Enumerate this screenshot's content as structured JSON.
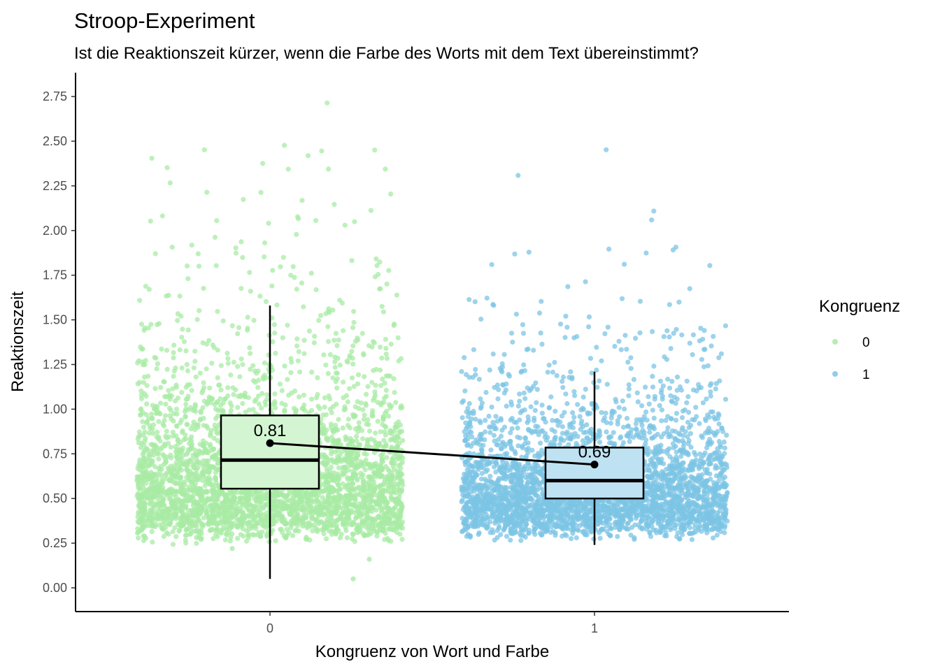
{
  "chart_data": {
    "type": "box",
    "title": "Stroop-Experiment",
    "subtitle": "Ist die Reaktionszeit kürzer, wenn die Farbe des Worts mit dem Text übereinstimmt?",
    "xlabel": "Kongruenz von Wort und Farbe",
    "ylabel": "Reaktionszeit",
    "categories": [
      "0",
      "1"
    ],
    "ylim": [
      -0.13,
      2.9
    ],
    "yticks": [
      "0.00",
      "0.25",
      "0.50",
      "0.75",
      "1.00",
      "1.25",
      "1.50",
      "1.75",
      "2.00",
      "2.25",
      "2.50",
      "2.75"
    ],
    "ytick_values": [
      0,
      0.25,
      0.5,
      0.75,
      1.0,
      1.25,
      1.5,
      1.75,
      2.0,
      2.25,
      2.5,
      2.75
    ],
    "grid": false,
    "legend": {
      "title": "Kongruenz",
      "position": "right",
      "entries": [
        {
          "label": "0",
          "color": "#A8EBA4"
        },
        {
          "label": "1",
          "color": "#7CC4E4"
        }
      ]
    },
    "series": [
      {
        "name": "0",
        "color": "#A8EBA4",
        "box_fill": "#D4F5D2",
        "box": {
          "whisker_low": 0.05,
          "q1": 0.555,
          "median": 0.715,
          "q3": 0.965,
          "whisker_high": 1.58
        },
        "mean": 0.81,
        "mean_label": "0.81",
        "points_range": [
          0.05,
          2.74
        ]
      },
      {
        "name": "1",
        "color": "#7CC4E4",
        "box_fill": "#BEE2F2",
        "box": {
          "whisker_low": 0.24,
          "q1": 0.5,
          "median": 0.6,
          "q3": 0.785,
          "whisker_high": 1.21
        },
        "mean": 0.69,
        "mean_label": "0.69",
        "points_range": [
          0.24,
          2.74
        ]
      }
    ],
    "mean_line": {
      "from": "0",
      "to": "1",
      "values": [
        0.81,
        0.69
      ]
    }
  }
}
